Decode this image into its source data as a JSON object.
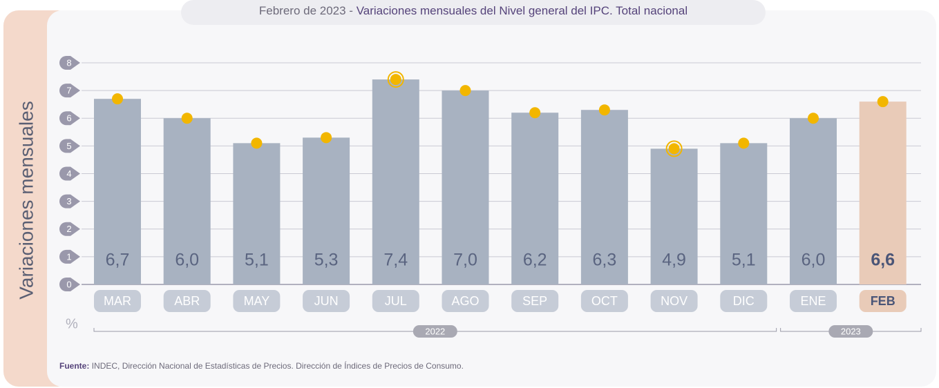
{
  "chart_data": {
    "type": "bar",
    "title_prefix": "Febrero de 2023 -",
    "title": "Variaciones mensuales del Nivel general del IPC. Total nacional",
    "y_axis_label": "Variaciones mensuales",
    "unit": "%",
    "categories": [
      "MAR",
      "ABR",
      "MAY",
      "JUN",
      "JUL",
      "AGO",
      "SEP",
      "OCT",
      "NOV",
      "DIC",
      "ENE",
      "FEB"
    ],
    "category_years": [
      "2022",
      "2022",
      "2022",
      "2022",
      "2022",
      "2022",
      "2022",
      "2022",
      "2022",
      "2022",
      "2023",
      "2023"
    ],
    "values": [
      6.7,
      6.0,
      5.1,
      5.3,
      7.4,
      7.0,
      6.2,
      6.3,
      4.9,
      5.1,
      6.0,
      6.6
    ],
    "value_labels": [
      "6,7",
      "6,0",
      "5,1",
      "5,3",
      "7,4",
      "7,0",
      "6,2",
      "6,3",
      "4,9",
      "5,1",
      "6,0",
      "6,6"
    ],
    "color": "#a8b2c1",
    "highlight_color": "#e9cbb8",
    "marker_color": "#f2b600",
    "ylim": [
      0,
      8
    ],
    "yticks": [
      0,
      1,
      2,
      3,
      4,
      5,
      6,
      7,
      8
    ],
    "grid": true,
    "source_label": "Fuente:",
    "source": "INDEC, Dirección Nacional de Estadísticas de Precios. Dirección de Índices de Precios de Consumo."
  }
}
